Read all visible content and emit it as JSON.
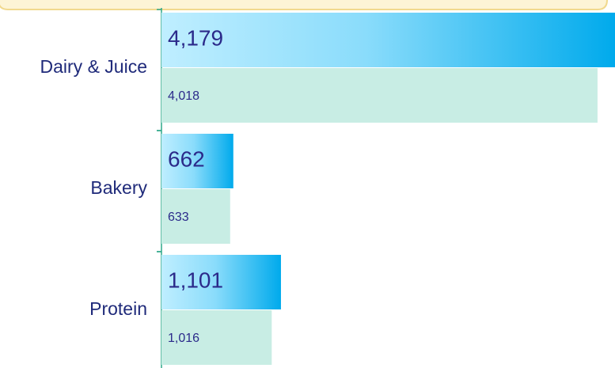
{
  "chart_data": {
    "type": "bar",
    "orientation": "horizontal",
    "categories": [
      "Dairy & Juice",
      "Bakery",
      "Protein"
    ],
    "series": [
      {
        "color": "#00aaec",
        "values": [
          4179,
          662,
          1101
        ],
        "value_labels": [
          "4,179",
          "662",
          "1,101"
        ]
      },
      {
        "color": "#c8ede4",
        "values": [
          4018,
          633,
          1016
        ],
        "value_labels": [
          "4,018",
          "633",
          "1,016"
        ]
      }
    ]
  }
}
